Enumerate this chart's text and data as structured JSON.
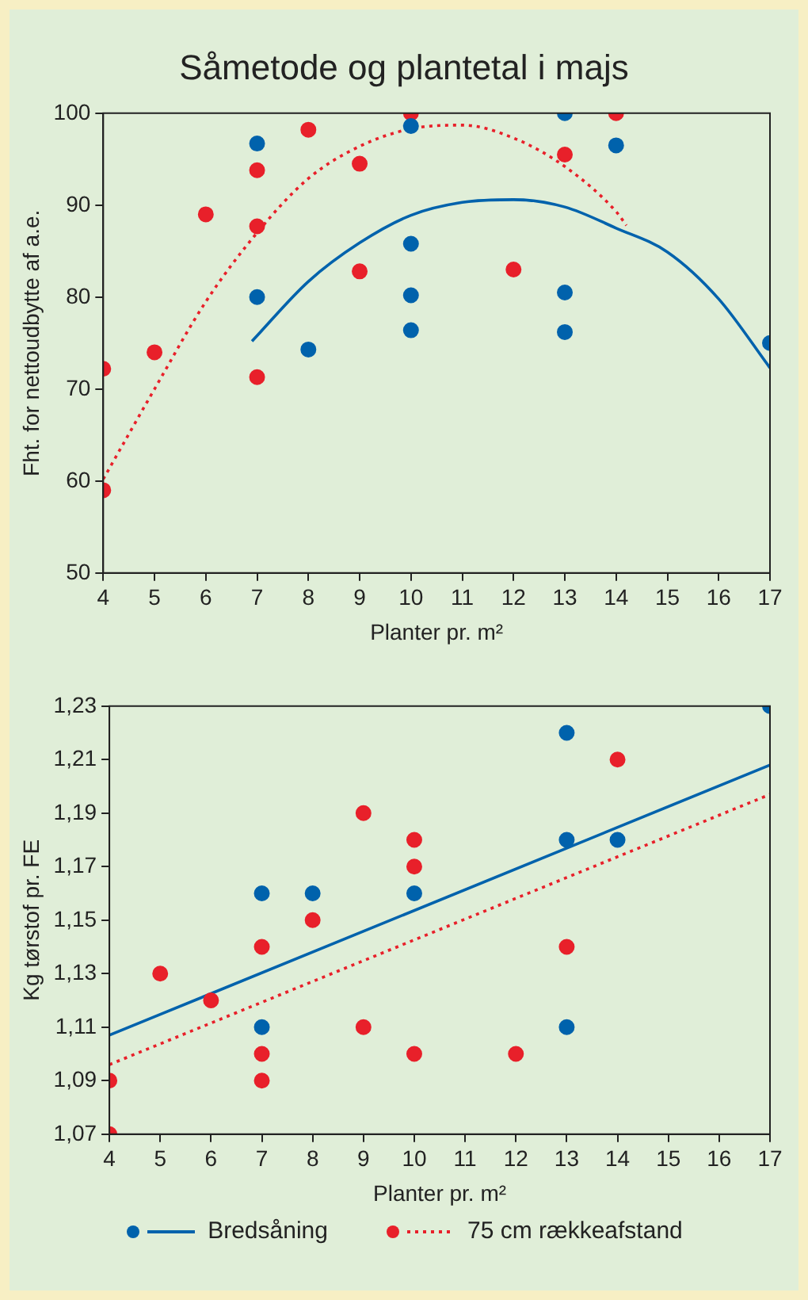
{
  "chart_data": [
    {
      "type": "scatter",
      "title": "Såmetode og plantetal i majs",
      "xlabel": "Planter pr. m²",
      "ylabel": "Fht. for nettoudbytte af a.e.",
      "xlim": [
        4,
        17
      ],
      "xticks": [
        4,
        5,
        6,
        7,
        8,
        9,
        10,
        11,
        12,
        13,
        14,
        15,
        16,
        17
      ],
      "ylim": [
        50,
        100
      ],
      "yticks": [
        50,
        60,
        70,
        80,
        90,
        100
      ],
      "grid": false,
      "legend": false,
      "marker": "circle",
      "series": [
        {
          "color": "#0062ac",
          "x": [
            7,
            7,
            8,
            10,
            10,
            10,
            10,
            13,
            13,
            13,
            14,
            17
          ],
          "values": [
            96.7,
            80,
            74.3,
            98.6,
            85.8,
            80.2,
            76.4,
            100,
            80.5,
            76.2,
            96.5,
            75
          ]
        },
        {
          "color": "#e8202a",
          "x": [
            4,
            4,
            5,
            6,
            7,
            7,
            7,
            8,
            9,
            9,
            10,
            12,
            13,
            14
          ],
          "values": [
            72.2,
            59,
            74,
            89,
            93.8,
            87.7,
            71.3,
            98.2,
            94.5,
            82.8,
            100,
            83,
            95.5,
            100
          ]
        },
        {
          "type": "line",
          "color": "#0062ac",
          "line_style": "solid",
          "marker": "none",
          "x": [
            6.9,
            8,
            9,
            10,
            11,
            12,
            13,
            14,
            15,
            16,
            17
          ],
          "values": [
            75.2,
            81.7,
            85.9,
            88.9,
            90.3,
            90.6,
            89.8,
            87.5,
            84.9,
            79.8,
            72.3
          ]
        },
        {
          "type": "line",
          "color": "#e8202a",
          "line_style": "dotted",
          "marker": "none",
          "x": [
            4,
            5,
            6,
            7,
            8,
            9,
            10,
            11,
            12,
            13,
            14,
            14.2
          ],
          "values": [
            60.2,
            70,
            79.5,
            87,
            92.9,
            96.4,
            98.3,
            98.7,
            97.3,
            94.2,
            89.3,
            87.8
          ]
        }
      ]
    },
    {
      "type": "scatter",
      "xlabel": "Planter pr. m²",
      "ylabel": "Kg tørstof pr. FE",
      "xlim": [
        4,
        17
      ],
      "xticks": [
        4,
        5,
        6,
        7,
        8,
        9,
        10,
        11,
        12,
        13,
        14,
        15,
        16,
        17
      ],
      "ylim": [
        1.07,
        1.23
      ],
      "yticks": [
        {
          "value": 1.07,
          "label": "1,07"
        },
        {
          "value": 1.09,
          "label": "1,09"
        },
        {
          "value": 1.11,
          "label": "1,11"
        },
        {
          "value": 1.13,
          "label": "1,13"
        },
        {
          "value": 1.15,
          "label": "1,15"
        },
        {
          "value": 1.17,
          "label": "1,17"
        },
        {
          "value": 1.19,
          "label": "1,19"
        },
        {
          "value": 1.21,
          "label": "1,21"
        },
        {
          "value": 1.23,
          "label": "1,23"
        }
      ],
      "grid": false,
      "legend": "bottom",
      "marker": "circle",
      "series": [
        {
          "color": "#0062ac",
          "x": [
            7,
            7,
            8,
            10,
            13,
            13,
            13,
            14,
            17
          ],
          "values": [
            1.16,
            1.11,
            1.16,
            1.16,
            1.22,
            1.18,
            1.11,
            1.18,
            1.23
          ]
        },
        {
          "color": "#e8202a",
          "x": [
            4,
            4,
            5,
            6,
            7,
            7,
            7,
            8,
            9,
            9,
            10,
            10,
            10,
            12,
            13,
            14
          ],
          "values": [
            1.09,
            1.07,
            1.13,
            1.12,
            1.14,
            1.1,
            1.09,
            1.15,
            1.19,
            1.11,
            1.18,
            1.17,
            1.1,
            1.1,
            1.14,
            1.21
          ]
        },
        {
          "type": "line",
          "name": "Bredsåning",
          "color": "#0062ac",
          "line_style": "solid",
          "marker": "none",
          "x": [
            4,
            17
          ],
          "values": [
            1.107,
            1.208
          ]
        },
        {
          "type": "line",
          "name": "75 cm rækkeafstand",
          "color": "#e8202a",
          "line_style": "dotted",
          "marker": "none",
          "x": [
            4,
            17
          ],
          "values": [
            1.096,
            1.197
          ]
        }
      ]
    }
  ]
}
